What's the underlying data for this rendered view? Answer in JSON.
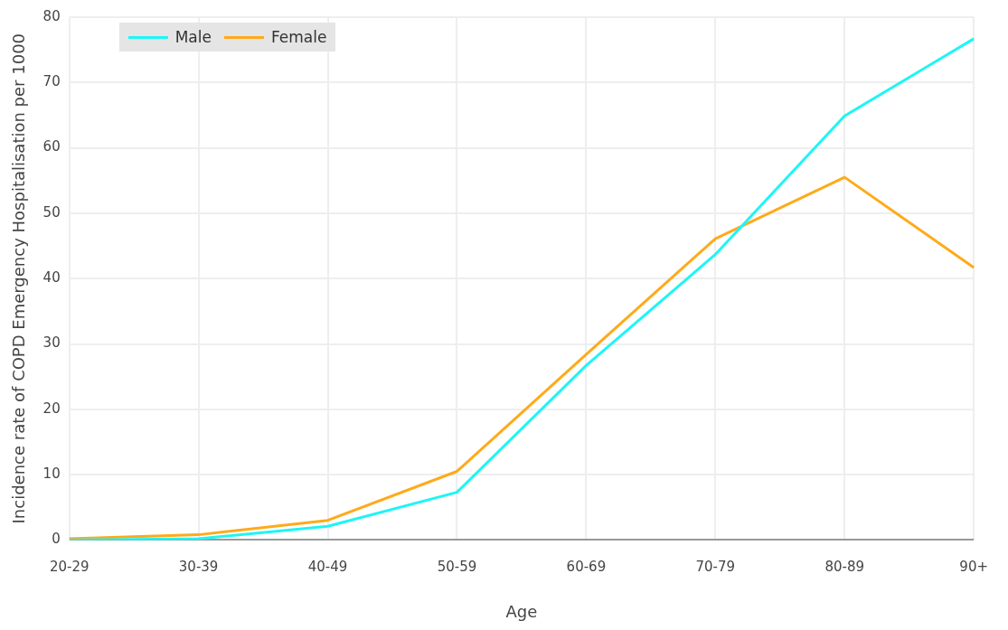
{
  "chart_data": {
    "type": "line",
    "xlabel": "Age",
    "ylabel": "Incidence rate of COPD Emergency Hospitalisation per 1000",
    "categories": [
      "20-29",
      "30-39",
      "40-49",
      "50-59",
      "60-69",
      "70-79",
      "80-89",
      "90+"
    ],
    "series": [
      {
        "name": "Male",
        "color": "#1ef5f5",
        "values": [
          0,
          0.2,
          2.1,
          7.3,
          26.7,
          43.7,
          64.9,
          76.7
        ]
      },
      {
        "name": "Female",
        "color": "#ffaa1a",
        "values": [
          0.2,
          0.8,
          3.0,
          10.5,
          28.4,
          46.1,
          55.5,
          41.7
        ]
      }
    ],
    "ylim": [
      0,
      80
    ],
    "yticks": [
      0,
      10,
      20,
      30,
      40,
      50,
      60,
      70,
      80
    ],
    "grid": true,
    "legend": "top left",
    "marker": "none",
    "line_style": "solid"
  }
}
